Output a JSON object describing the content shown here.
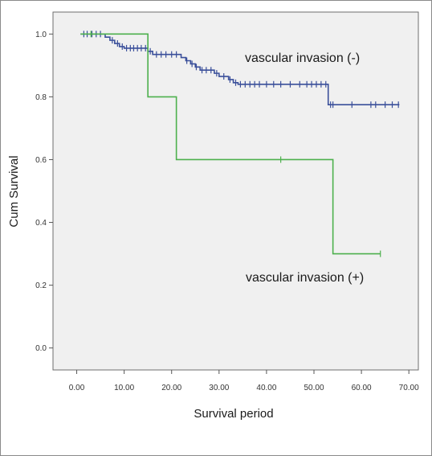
{
  "chart_data": {
    "type": "line",
    "subtype": "kaplan-meier step",
    "xlabel": "Survival period",
    "ylabel": "Cum Survival",
    "xlim": [
      -5,
      72
    ],
    "ylim": [
      -0.07,
      1.07
    ],
    "x_ticks": [
      0,
      10,
      20,
      30,
      40,
      50,
      60,
      70
    ],
    "x_tick_labels": [
      "0.00",
      "10.00",
      "20.00",
      "30.00",
      "40.00",
      "50.00",
      "60.00",
      "70.00"
    ],
    "y_ticks": [
      0,
      0.2,
      0.4,
      0.6,
      0.8,
      1.0
    ],
    "y_tick_labels": [
      "0.0",
      "0.2",
      "0.4",
      "0.6",
      "0.8",
      "1.0"
    ],
    "grid": false,
    "plot_background": "#f0f0f0",
    "series": [
      {
        "name": "vascular invasion (-)",
        "color": "#3a4f9a",
        "steps": [
          [
            0.8,
            1.0
          ],
          [
            6,
            0.99
          ],
          [
            7,
            0.98
          ],
          [
            8,
            0.97
          ],
          [
            9,
            0.96
          ],
          [
            10,
            0.955
          ],
          [
            15,
            0.945
          ],
          [
            16,
            0.935
          ],
          [
            22,
            0.925
          ],
          [
            23,
            0.915
          ],
          [
            24,
            0.905
          ],
          [
            25,
            0.895
          ],
          [
            26,
            0.885
          ],
          [
            29,
            0.875
          ],
          [
            30,
            0.865
          ],
          [
            32,
            0.855
          ],
          [
            33,
            0.845
          ],
          [
            34,
            0.84
          ],
          [
            53,
            0.775
          ],
          [
            68,
            0.775
          ]
        ],
        "censored": [
          1.5,
          2.2,
          3.2,
          4.1,
          5.0,
          7.5,
          8.6,
          9.6,
          10.5,
          11.3,
          12.0,
          12.8,
          13.6,
          14.5,
          15.5,
          16.8,
          17.8,
          18.8,
          20.0,
          21.0,
          23.2,
          24.3,
          25.2,
          26.4,
          27.3,
          28.3,
          29.5,
          31.0,
          32.3,
          33.5,
          34.5,
          35.5,
          36.5,
          37.5,
          38.5,
          40.0,
          41.5,
          43.0,
          45.0,
          47.0,
          48.5,
          49.5,
          50.5,
          51.5,
          52.5,
          53.5,
          54.0,
          58.0,
          62.0,
          63.0,
          65.0,
          66.5,
          67.8
        ]
      },
      {
        "name": "vascular invasion (+)",
        "color": "#4db04d",
        "steps": [
          [
            0.8,
            1.0
          ],
          [
            15,
            0.8
          ],
          [
            21,
            0.6
          ],
          [
            54,
            0.3
          ],
          [
            64,
            0.3
          ]
        ],
        "censored": [
          3.0,
          43.0,
          64.0
        ]
      }
    ],
    "annotations": [
      {
        "text": "vascular invasion (-)",
        "series": 0
      },
      {
        "text": "vascular invasion (+)",
        "series": 1
      }
    ]
  }
}
